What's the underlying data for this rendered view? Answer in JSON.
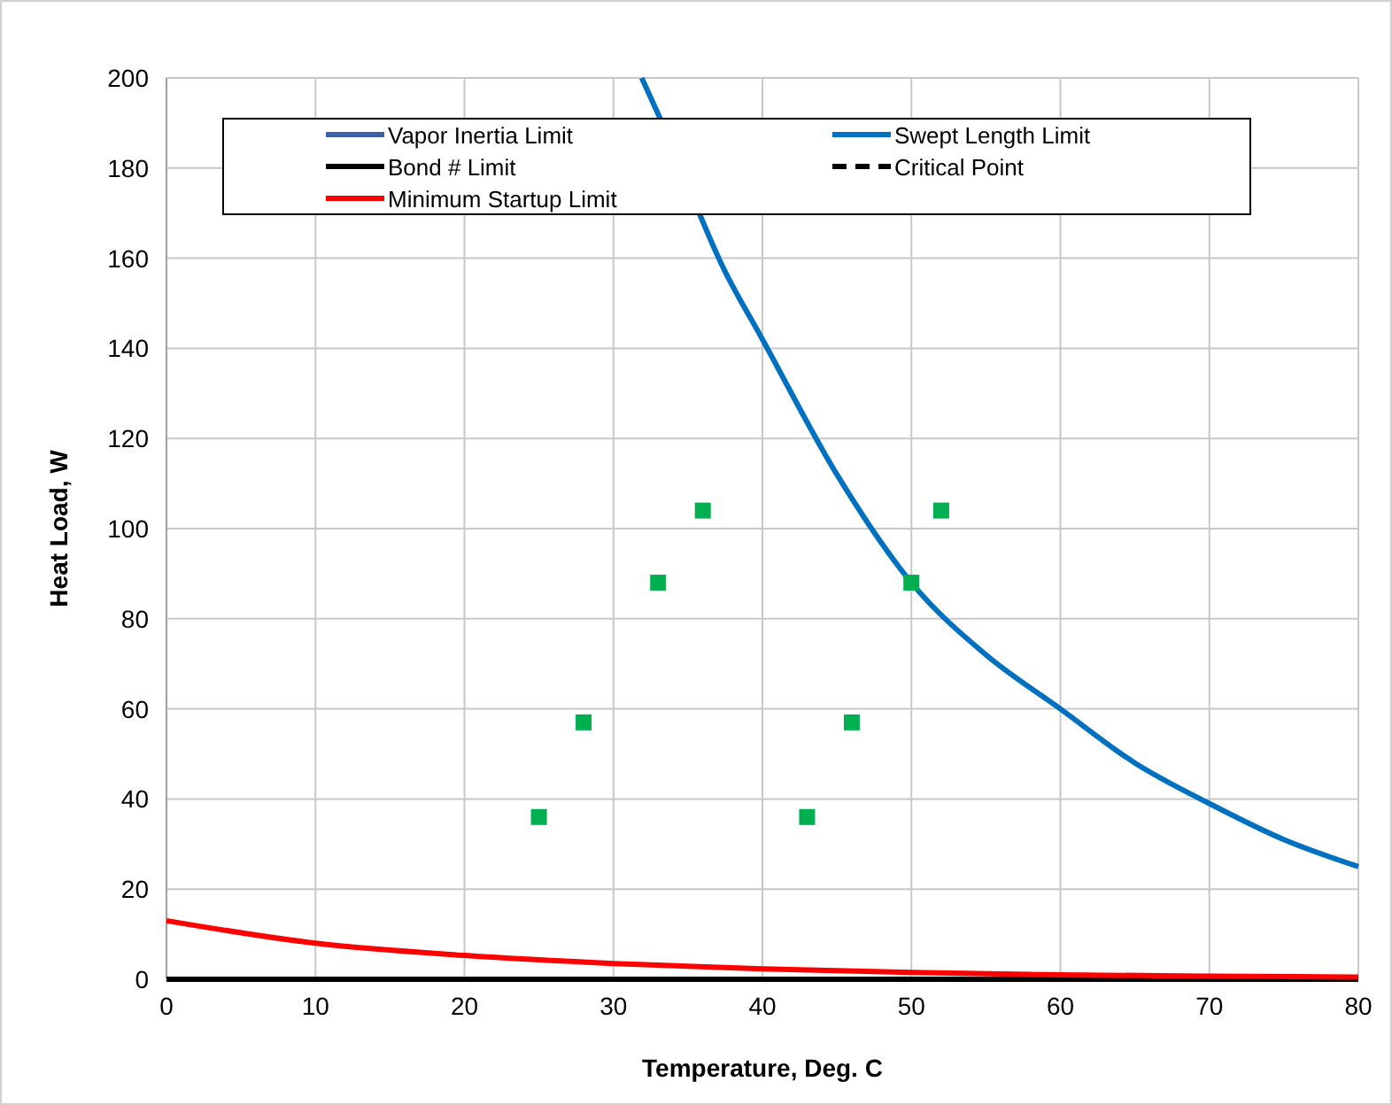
{
  "chart_data": {
    "type": "line",
    "xlabel": "Temperature, Deg. C",
    "ylabel": "Heat Load, W",
    "xlim": [
      0,
      80
    ],
    "xticks": [
      0,
      10,
      20,
      30,
      40,
      50,
      60,
      70,
      80
    ],
    "ylim": [
      0,
      200
    ],
    "yticks": [
      0,
      20,
      40,
      60,
      80,
      100,
      120,
      140,
      160,
      180,
      200
    ],
    "grid": true,
    "legend": "top",
    "marker": "none",
    "series": [
      {
        "name": "Vapor Inertia Limit",
        "color": "#3f5fa8"
      },
      {
        "name": "Swept Length Limit",
        "color": "#0070c0",
        "x": [
          31.9,
          33,
          37.5,
          40,
          45,
          50,
          55,
          60,
          65,
          70,
          75,
          80
        ],
        "values": [
          200,
          192,
          157,
          142,
          112,
          88,
          72,
          60,
          48,
          39,
          31,
          25
        ]
      },
      {
        "name": "Bond # Limit",
        "color": "#000000",
        "x": [
          0,
          80
        ],
        "values": [
          0,
          0
        ]
      },
      {
        "name": "Critical Point",
        "color": "#000000",
        "line_style": "dashed"
      },
      {
        "name": "Minimum Startup Limit",
        "color": "#ff0000",
        "x": [
          0,
          10,
          20,
          30,
          40,
          50,
          60,
          70,
          80
        ],
        "values": [
          13,
          8,
          5.3,
          3.5,
          2.3,
          1.5,
          1,
          0.7,
          0.5
        ]
      },
      {
        "type": "scatter",
        "marker": "square",
        "color": "#00b050",
        "x": [
          25,
          28,
          33,
          36,
          43,
          46,
          50,
          52
        ],
        "values": [
          36,
          57,
          88,
          104,
          36,
          57,
          88,
          104
        ]
      }
    ]
  }
}
